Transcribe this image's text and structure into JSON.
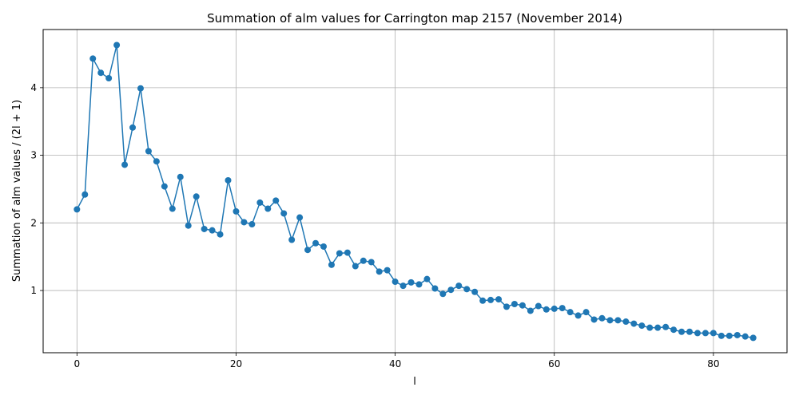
{
  "chart_data": {
    "type": "line",
    "title": "Summation of alm values for Carrington map 2157 (November 2014)",
    "xlabel": "l",
    "ylabel": "Summation of alm values / (2l + 1)",
    "xlim": [
      -4.25,
      89.25
    ],
    "ylim": [
      0.08,
      4.86
    ],
    "xticks": [
      0,
      20,
      40,
      60,
      80
    ],
    "yticks": [
      1,
      2,
      3,
      4
    ],
    "grid": true,
    "legend": "none",
    "marker": "circle",
    "color": "#1f77b4",
    "series": [
      {
        "x": [
          0,
          1,
          2,
          3,
          4,
          5,
          6,
          7,
          8,
          9,
          10,
          11,
          12,
          13,
          14,
          15,
          16,
          17,
          18,
          19,
          20,
          21,
          22,
          23,
          24,
          25,
          26,
          27,
          28,
          29,
          30,
          31,
          32,
          33,
          34,
          35,
          36,
          37,
          38,
          39,
          40,
          41,
          42,
          43,
          44,
          45,
          46,
          47,
          48,
          49,
          50,
          51,
          52,
          53,
          54,
          55,
          56,
          57,
          58,
          59,
          60,
          61,
          62,
          63,
          64,
          65,
          66,
          67,
          68,
          69,
          70,
          71,
          72,
          73,
          74,
          75,
          76,
          77,
          78,
          79,
          80,
          81,
          82,
          83,
          84,
          85
        ],
        "values": [
          2.2,
          2.42,
          4.43,
          4.22,
          4.14,
          4.63,
          2.86,
          3.41,
          3.99,
          3.06,
          2.91,
          2.54,
          2.21,
          2.68,
          1.96,
          2.39,
          1.91,
          1.89,
          1.83,
          2.63,
          2.17,
          2.01,
          1.98,
          2.3,
          2.21,
          2.33,
          2.14,
          1.75,
          2.08,
          1.6,
          1.7,
          1.65,
          1.38,
          1.55,
          1.56,
          1.36,
          1.44,
          1.42,
          1.28,
          1.3,
          1.13,
          1.07,
          1.12,
          1.09,
          1.17,
          1.03,
          0.95,
          1.01,
          1.07,
          1.02,
          0.98,
          0.85,
          0.86,
          0.87,
          0.76,
          0.8,
          0.78,
          0.7,
          0.77,
          0.72,
          0.73,
          0.74,
          0.68,
          0.63,
          0.68,
          0.57,
          0.59,
          0.56,
          0.56,
          0.54,
          0.51,
          0.48,
          0.45,
          0.45,
          0.46,
          0.42,
          0.39,
          0.39,
          0.37,
          0.37,
          0.37,
          0.33,
          0.33,
          0.34,
          0.32,
          0.3
        ]
      }
    ]
  }
}
